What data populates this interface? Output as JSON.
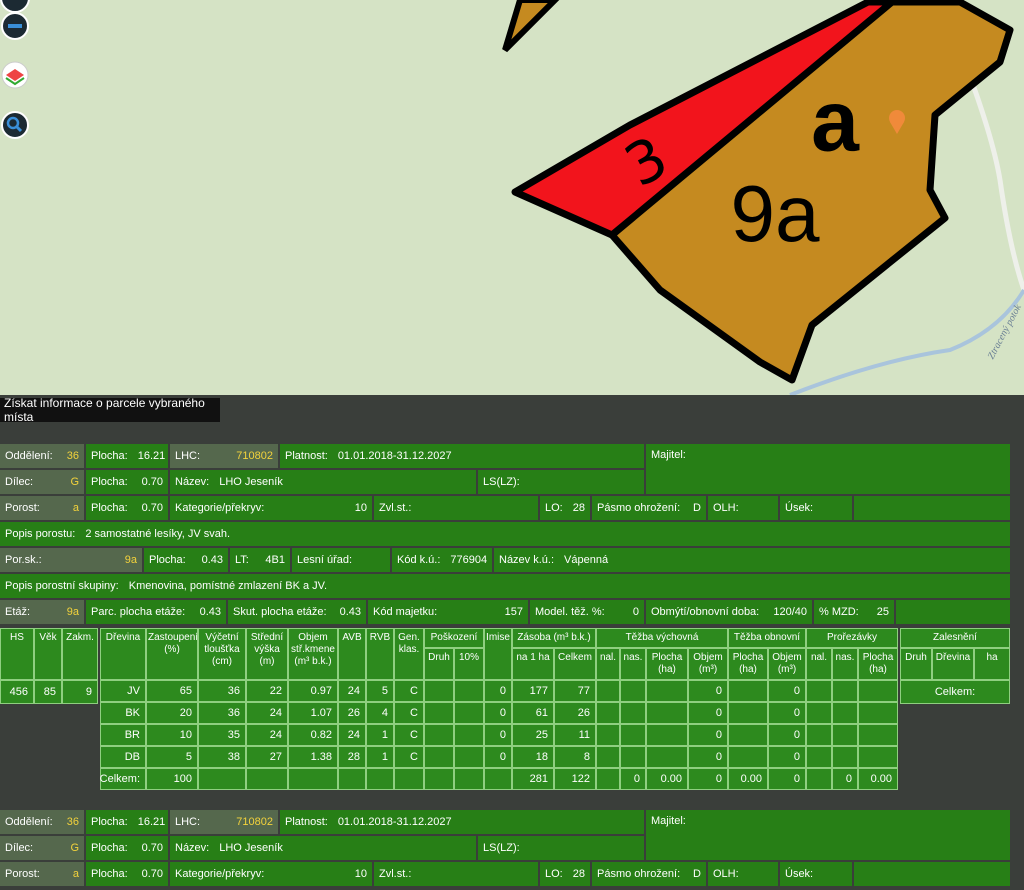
{
  "map": {
    "labels": {
      "strip": "3",
      "stand": "a",
      "group": "9a",
      "stream": "Ztracený potok"
    }
  },
  "tooltip": "Získat informace o parcele vybraného místa",
  "blocks": [
    {
      "rows": [
        [
          {
            "label": "Oddělení:",
            "value": "36"
          },
          {
            "label": "Plocha:",
            "value": "16.21"
          },
          {
            "label": "LHC:",
            "value": "710802"
          },
          {
            "label": "Platnost:",
            "value": "01.01.2018-31.12.2027"
          },
          {
            "label": "Majitel:"
          }
        ],
        [
          {
            "label": "Dílec:",
            "value": "G"
          },
          {
            "label": "Plocha:",
            "value": "0.70"
          },
          {
            "label": "Název:",
            "value": "LHO Jeseník"
          },
          {
            "label": "LS(LZ):"
          }
        ],
        [
          {
            "label": "Porost:",
            "value": "a"
          },
          {
            "label": "Plocha:",
            "value": "0.70"
          },
          {
            "label": "Kategorie/překryv:",
            "value": "10"
          },
          {
            "label": "Zvl.st.:"
          },
          {
            "label": "LO:",
            "value": "28"
          },
          {
            "label": "Pásmo ohrožení:",
            "value": "D"
          },
          {
            "label": "OLH:"
          },
          {
            "label": "Úsek:"
          }
        ],
        [
          {
            "label": "Popis porostu:",
            "value": "2 samostatné lesíky, JV svah."
          }
        ],
        [
          {
            "label": "Por.sk.:",
            "value": "9a"
          },
          {
            "label": "Plocha:",
            "value": "0.43"
          },
          {
            "label": "LT:",
            "value": "4B1"
          },
          {
            "label": "Lesní úřad:"
          },
          {
            "label": "Kód k.ú.:",
            "value": "776904"
          },
          {
            "label": "Název k.ú.:",
            "value": "Vápenná"
          }
        ],
        [
          {
            "label": "Popis porostní skupiny:",
            "value": "Kmenovina, pomístné zmlazení BK a JV."
          }
        ],
        [
          {
            "label": "Etáž:",
            "value": "9a"
          },
          {
            "label": "Parc. plocha etáže:",
            "value": "0.43"
          },
          {
            "label": "Skut. plocha etáže:",
            "value": "0.43"
          },
          {
            "label": "Kód majetku:",
            "value": "157"
          },
          {
            "label": "Model. těž. %:",
            "value": "0"
          },
          {
            "label": "Obmýtí/obnovní doba:",
            "value": "120/40"
          },
          {
            "label": "% MZD:",
            "value": "25"
          }
        ]
      ]
    },
    {
      "rows": [
        [
          {
            "label": "Oddělení:",
            "value": "36"
          },
          {
            "label": "Plocha:",
            "value": "16.21"
          },
          {
            "label": "LHC:",
            "value": "710802"
          },
          {
            "label": "Platnost:",
            "value": "01.01.2018-31.12.2027"
          },
          {
            "label": "Majitel:"
          }
        ],
        [
          {
            "label": "Dílec:",
            "value": "G"
          },
          {
            "label": "Plocha:",
            "value": "0.70"
          },
          {
            "label": "Název:",
            "value": "LHO Jeseník"
          },
          {
            "label": "LS(LZ):"
          }
        ],
        [
          {
            "label": "Porost:",
            "value": "a"
          },
          {
            "label": "Plocha:",
            "value": "0.70"
          },
          {
            "label": "Kategorie/překryv:",
            "value": "10"
          },
          {
            "label": "Zvl.st.:"
          },
          {
            "label": "LO:",
            "value": "28"
          },
          {
            "label": "Pásmo ohrožení:",
            "value": "D"
          },
          {
            "label": "OLH:"
          },
          {
            "label": "Úsek:"
          }
        ]
      ]
    }
  ],
  "stand": {
    "headers": [
      "HS",
      "Věk",
      "Zakm."
    ],
    "values": [
      "456",
      "85",
      "9"
    ]
  },
  "species": {
    "columns": [
      "Dřevina",
      "Zastoupení (%)",
      "Výčetní tloušťka (cm)",
      "Střední výška (m)",
      "Objem stř.kmene (m³ b.k.)",
      "AVB",
      "RVB",
      "Gen. klas.",
      {
        "group": "Poškození",
        "columns": [
          "Druh",
          "10%"
        ]
      },
      "Imise",
      {
        "group": "Zásoba (m³ b.k.)",
        "columns": [
          "na 1 ha",
          "Celkem"
        ]
      },
      {
        "group": "Těžba výchovná",
        "columns": [
          "nal.",
          "nas.",
          "Plocha (ha)",
          "Objem (m³)"
        ]
      },
      {
        "group": "Těžba obnovní",
        "columns": [
          "Plocha (ha)",
          "Objem (m³)"
        ]
      },
      {
        "group": "Prořezávky",
        "columns": [
          "nal.",
          "nas.",
          "Plocha (ha)"
        ]
      }
    ],
    "rows": [
      [
        "JV",
        "65",
        "36",
        "22",
        "0.97",
        "24",
        "5",
        "C",
        null,
        null,
        "0",
        "177",
        "77",
        null,
        null,
        null,
        "0",
        null,
        "0",
        null,
        null,
        null
      ],
      [
        "BK",
        "20",
        "36",
        "24",
        "1.07",
        "26",
        "4",
        "C",
        null,
        null,
        "0",
        "61",
        "26",
        null,
        null,
        null,
        "0",
        null,
        "0",
        null,
        null,
        null
      ],
      [
        "BR",
        "10",
        "35",
        "24",
        "0.82",
        "24",
        "1",
        "C",
        null,
        null,
        "0",
        "25",
        "11",
        null,
        null,
        null,
        "0",
        null,
        "0",
        null,
        null,
        null
      ],
      [
        "DB",
        "5",
        "38",
        "27",
        "1.38",
        "28",
        "1",
        "C",
        null,
        null,
        "0",
        "18",
        "8",
        null,
        null,
        null,
        "0",
        null,
        "0",
        null,
        null,
        null
      ],
      [
        "Celkem:",
        "100",
        null,
        null,
        null,
        null,
        null,
        null,
        null,
        null,
        null,
        "281",
        "122",
        null,
        "0",
        "0.00",
        "0",
        "0.00",
        "0",
        null,
        "0",
        "0.00"
      ]
    ]
  },
  "planting": {
    "title": "Zalesnění",
    "headers": [
      "Druh",
      "Dřevina",
      "ha"
    ],
    "total": "Celkem:"
  }
}
